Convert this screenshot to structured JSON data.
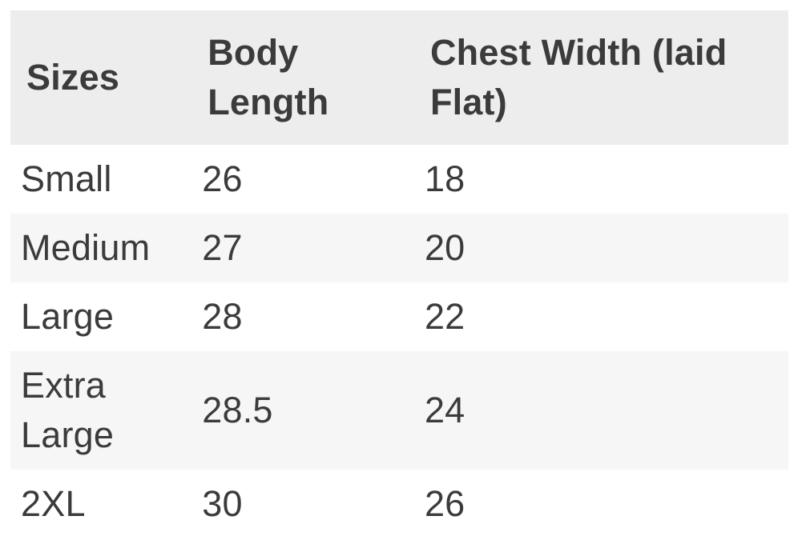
{
  "chart_data": {
    "type": "table",
    "title": "",
    "columns": [
      "Sizes",
      "Body Length",
      "Chest Width (laid Flat)"
    ],
    "rows": [
      [
        "Small",
        "26",
        "18"
      ],
      [
        "Medium",
        "27",
        "20"
      ],
      [
        "Large",
        "28",
        "22"
      ],
      [
        "Extra Large",
        "28.5",
        "24"
      ],
      [
        "2XL",
        "30",
        "26"
      ]
    ]
  },
  "table": {
    "header": {
      "sizes": "Sizes",
      "body_length": "Body Length",
      "chest_width": "Chest Width (laid Flat)"
    },
    "rows": [
      {
        "size": "Small",
        "body_length": "26",
        "chest_width": "18"
      },
      {
        "size": "Medium",
        "body_length": "27",
        "chest_width": "20"
      },
      {
        "size": "Large",
        "body_length": "28",
        "chest_width": "22"
      },
      {
        "size": "Extra Large",
        "body_length": "28.5",
        "chest_width": "24"
      },
      {
        "size": "2XL",
        "body_length": "30",
        "chest_width": "26"
      }
    ],
    "colors": {
      "header_bg": "#ededed",
      "zebra_row_bg": "#f6f6f6",
      "text": "#3b3b3b",
      "page_bg": "#ffffff"
    }
  }
}
